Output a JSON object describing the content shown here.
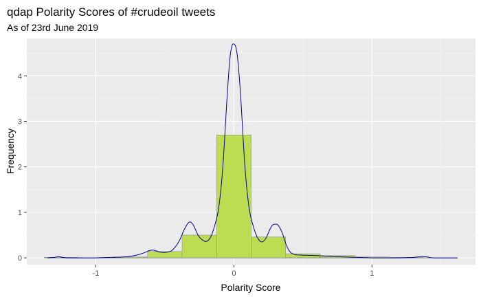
{
  "chart_data": {
    "type": "bar",
    "title": "qdap Polarity Scores of #crudeoil tweets",
    "subtitle": "As of 23rd June 2019",
    "xlabel": "Polarity Score",
    "ylabel": "Frequency",
    "xlim": [
      -1.5,
      1.75
    ],
    "ylim": [
      -0.15,
      4.82
    ],
    "x_ticks": [
      -1,
      0,
      1
    ],
    "x_tick_labels": [
      "-1",
      "0",
      "1"
    ],
    "y_ticks": [
      0,
      1,
      2,
      3,
      4
    ],
    "y_tick_labels": [
      "0",
      "1",
      "2",
      "3",
      "4"
    ],
    "grid": true,
    "legend": "none",
    "bin_width": 0.25,
    "bins": [
      {
        "x0": -1.375,
        "x1": -1.125,
        "value": 0.01
      },
      {
        "x0": -1.125,
        "x1": -0.875,
        "value": 0.0
      },
      {
        "x0": -0.875,
        "x1": -0.625,
        "value": 0.02
      },
      {
        "x0": -0.625,
        "x1": -0.375,
        "value": 0.14
      },
      {
        "x0": -0.375,
        "x1": -0.125,
        "value": 0.5
      },
      {
        "x0": -0.125,
        "x1": 0.125,
        "value": 2.7
      },
      {
        "x0": 0.125,
        "x1": 0.375,
        "value": 0.46
      },
      {
        "x0": 0.375,
        "x1": 0.625,
        "value": 0.09
      },
      {
        "x0": 0.625,
        "x1": 0.875,
        "value": 0.05
      },
      {
        "x0": 0.875,
        "x1": 1.125,
        "value": 0.02
      },
      {
        "x0": 1.125,
        "x1": 1.375,
        "value": 0.01
      },
      {
        "x0": 1.375,
        "x1": 1.625,
        "value": 0.0
      }
    ],
    "density": {
      "x": [
        -1.35,
        -1.3,
        -1.27,
        -1.24,
        -1.2,
        -1.1,
        -1.0,
        -0.9,
        -0.8,
        -0.72,
        -0.66,
        -0.62,
        -0.6,
        -0.57,
        -0.54,
        -0.5,
        -0.45,
        -0.4,
        -0.36,
        -0.33,
        -0.31,
        -0.29,
        -0.26,
        -0.23,
        -0.2,
        -0.17,
        -0.14,
        -0.11,
        -0.08,
        -0.05,
        -0.03,
        -0.015,
        0.0,
        0.015,
        0.03,
        0.05,
        0.08,
        0.11,
        0.14,
        0.17,
        0.2,
        0.23,
        0.26,
        0.28,
        0.3,
        0.32,
        0.35,
        0.38,
        0.41,
        0.45,
        0.5,
        0.6,
        0.7,
        0.8,
        0.9,
        1.0,
        1.1,
        1.2,
        1.3,
        1.36,
        1.4,
        1.45,
        1.62
      ],
      "y": [
        0.0,
        0.01,
        0.03,
        0.01,
        0.0,
        0.0,
        0.0,
        0.01,
        0.02,
        0.05,
        0.1,
        0.15,
        0.17,
        0.16,
        0.13,
        0.12,
        0.16,
        0.35,
        0.62,
        0.77,
        0.78,
        0.7,
        0.5,
        0.4,
        0.36,
        0.45,
        0.7,
        1.1,
        2.0,
        3.5,
        4.35,
        4.65,
        4.7,
        4.62,
        4.3,
        3.5,
        2.0,
        1.1,
        0.7,
        0.45,
        0.35,
        0.42,
        0.62,
        0.72,
        0.74,
        0.72,
        0.55,
        0.28,
        0.12,
        0.07,
        0.06,
        0.05,
        0.03,
        0.02,
        0.01,
        0.0,
        0.0,
        0.0,
        0.01,
        0.03,
        0.02,
        0.0,
        0.0
      ]
    },
    "baseline_x": [
      -1.36,
      1.62
    ],
    "colors": {
      "panel": "#ebebeb",
      "grid_major": "#ffffff",
      "grid_minor": "#f5f5f5",
      "bar_fill": "#bedc52",
      "bar_stroke": "#909090",
      "density": "#00008b",
      "baseline": "#8c8c8c",
      "tick_text": "#4d4d4d"
    }
  }
}
